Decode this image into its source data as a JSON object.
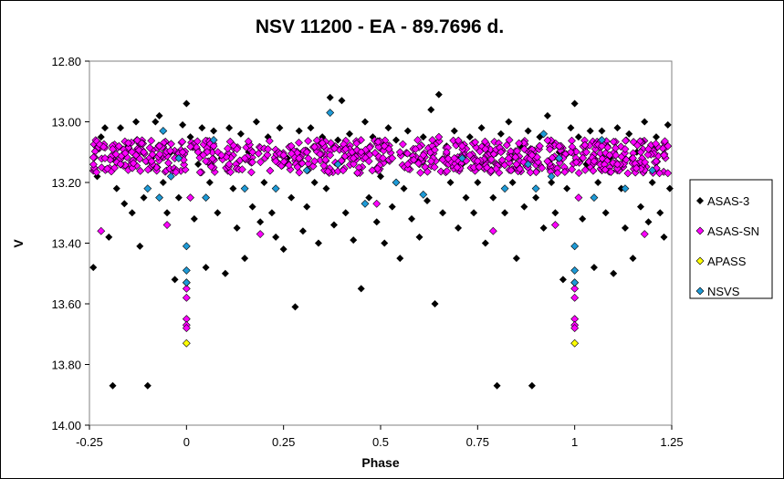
{
  "chart_data": {
    "type": "scatter",
    "title": "NSV 11200 - EA - 89.7696 d.",
    "xlabel": "Phase",
    "ylabel": "V",
    "xlim": [
      -0.25,
      1.25
    ],
    "ylim": [
      12.8,
      14.0
    ],
    "y_inverted": true,
    "x_ticks": [
      "-0.25",
      "0",
      "0.25",
      "0.5",
      "0.75",
      "1",
      "1.25"
    ],
    "y_ticks": [
      "12.80",
      "13.00",
      "13.20",
      "13.40",
      "13.60",
      "13.80",
      "14.00"
    ],
    "grid": false,
    "legend_position": "right",
    "series": [
      {
        "name": "ASAS-3",
        "color": "#000000",
        "points": [
          [
            -0.24,
            13.48
          ],
          [
            -0.23,
            13.18
          ],
          [
            -0.22,
            13.05
          ],
          [
            -0.21,
            13.02
          ],
          [
            -0.2,
            13.38
          ],
          [
            -0.19,
            13.87
          ],
          [
            -0.18,
            13.22
          ],
          [
            -0.17,
            13.02
          ],
          [
            -0.16,
            13.27
          ],
          [
            -0.15,
            13.08
          ],
          [
            -0.14,
            13.3
          ],
          [
            -0.13,
            13.0
          ],
          [
            -0.12,
            13.41
          ],
          [
            -0.11,
            13.25
          ],
          [
            -0.1,
            13.87
          ],
          [
            -0.09,
            13.12
          ],
          [
            -0.08,
            13.0
          ],
          [
            -0.07,
            12.98
          ],
          [
            -0.06,
            13.2
          ],
          [
            -0.05,
            13.3
          ],
          [
            -0.04,
            13.1
          ],
          [
            -0.03,
            13.52
          ],
          [
            -0.02,
            13.25
          ],
          [
            -0.01,
            13.01
          ],
          [
            0.0,
            12.94
          ],
          [
            0.01,
            13.05
          ],
          [
            0.02,
            13.32
          ],
          [
            0.03,
            13.14
          ],
          [
            0.04,
            13.02
          ],
          [
            0.05,
            13.48
          ],
          [
            0.06,
            13.2
          ],
          [
            0.07,
            13.03
          ],
          [
            0.08,
            13.3
          ],
          [
            0.09,
            13.12
          ],
          [
            0.1,
            13.5
          ],
          [
            0.11,
            13.02
          ],
          [
            0.12,
            13.22
          ],
          [
            0.13,
            13.35
          ],
          [
            0.14,
            13.04
          ],
          [
            0.15,
            13.45
          ],
          [
            0.16,
            13.1
          ],
          [
            0.17,
            13.28
          ],
          [
            0.18,
            13.0
          ],
          [
            0.19,
            13.33
          ],
          [
            0.2,
            13.2
          ],
          [
            0.21,
            13.05
          ],
          [
            0.22,
            13.3
          ],
          [
            0.23,
            13.38
          ],
          [
            0.24,
            13.02
          ],
          [
            0.25,
            13.42
          ],
          [
            0.26,
            13.12
          ],
          [
            0.27,
            13.25
          ],
          [
            0.28,
            13.61
          ],
          [
            0.29,
            13.03
          ],
          [
            0.3,
            13.36
          ],
          [
            0.31,
            13.28
          ],
          [
            0.32,
            13.02
          ],
          [
            0.33,
            13.2
          ],
          [
            0.34,
            13.4
          ],
          [
            0.35,
            13.05
          ],
          [
            0.36,
            13.22
          ],
          [
            0.37,
            12.92
          ],
          [
            0.38,
            13.34
          ],
          [
            0.39,
            13.06
          ],
          [
            0.4,
            12.93
          ],
          [
            0.41,
            13.3
          ],
          [
            0.42,
            13.04
          ],
          [
            0.43,
            13.39
          ],
          [
            0.44,
            13.17
          ],
          [
            0.45,
            13.55
          ],
          [
            0.46,
            13.0
          ],
          [
            0.47,
            13.25
          ],
          [
            0.48,
            13.05
          ],
          [
            0.49,
            13.33
          ],
          [
            0.5,
            13.18
          ],
          [
            0.51,
            13.4
          ],
          [
            0.52,
            13.02
          ],
          [
            0.53,
            13.28
          ],
          [
            0.54,
            13.06
          ],
          [
            0.55,
            13.45
          ],
          [
            0.56,
            13.22
          ],
          [
            0.57,
            13.03
          ],
          [
            0.58,
            13.32
          ],
          [
            0.59,
            13.12
          ],
          [
            0.6,
            13.38
          ],
          [
            0.61,
            13.05
          ],
          [
            0.62,
            13.26
          ],
          [
            0.63,
            12.96
          ],
          [
            0.64,
            13.6
          ],
          [
            0.65,
            12.91
          ],
          [
            0.66,
            13.3
          ],
          [
            0.67,
            13.08
          ],
          [
            0.68,
            13.2
          ],
          [
            0.69,
            13.03
          ],
          [
            0.7,
            13.35
          ],
          [
            0.71,
            13.14
          ],
          [
            0.72,
            13.25
          ],
          [
            0.73,
            13.05
          ],
          [
            0.74,
            13.3
          ],
          [
            0.75,
            13.2
          ],
          [
            0.76,
            13.02
          ],
          [
            0.77,
            13.4
          ],
          [
            0.78,
            13.1
          ],
          [
            0.79,
            13.25
          ],
          [
            0.8,
            13.87
          ],
          [
            0.81,
            13.04
          ],
          [
            0.82,
            13.3
          ],
          [
            0.83,
            13.0
          ],
          [
            0.84,
            13.2
          ],
          [
            0.85,
            13.45
          ],
          [
            0.86,
            13.08
          ],
          [
            0.87,
            13.28
          ],
          [
            0.88,
            13.03
          ],
          [
            0.89,
            13.87
          ],
          [
            0.9,
            13.25
          ],
          [
            0.91,
            13.05
          ],
          [
            0.92,
            13.35
          ],
          [
            0.93,
            12.98
          ],
          [
            0.94,
            13.2
          ],
          [
            0.95,
            13.3
          ],
          [
            0.96,
            13.1
          ],
          [
            0.97,
            13.52
          ],
          [
            0.98,
            13.22
          ],
          [
            0.99,
            13.02
          ],
          [
            1.0,
            12.94
          ],
          [
            1.01,
            13.05
          ],
          [
            1.02,
            13.32
          ],
          [
            1.03,
            13.14
          ],
          [
            1.04,
            13.03
          ],
          [
            1.05,
            13.48
          ],
          [
            1.06,
            13.2
          ],
          [
            1.07,
            13.03
          ],
          [
            1.08,
            13.3
          ],
          [
            1.09,
            13.12
          ],
          [
            1.1,
            13.5
          ],
          [
            1.11,
            13.02
          ],
          [
            1.12,
            13.22
          ],
          [
            1.13,
            13.35
          ],
          [
            1.14,
            13.04
          ],
          [
            1.15,
            13.45
          ],
          [
            1.16,
            13.1
          ],
          [
            1.17,
            13.28
          ],
          [
            1.18,
            13.0
          ],
          [
            1.19,
            13.33
          ],
          [
            1.2,
            13.2
          ],
          [
            1.21,
            13.05
          ],
          [
            1.22,
            13.3
          ],
          [
            1.23,
            13.38
          ],
          [
            1.24,
            13.01
          ],
          [
            1.245,
            13.22
          ]
        ]
      },
      {
        "name": "ASAS-SN",
        "color": "#ff00ff",
        "points": [
          [
            -0.22,
            13.36
          ],
          [
            -0.21,
            13.12
          ],
          [
            -0.19,
            13.09
          ],
          [
            -0.17,
            13.14
          ],
          [
            -0.15,
            13.07
          ],
          [
            -0.13,
            13.11
          ],
          [
            -0.11,
            13.1
          ],
          [
            -0.09,
            13.13
          ],
          [
            -0.07,
            13.08
          ],
          [
            -0.05,
            13.34
          ],
          [
            -0.03,
            13.12
          ],
          [
            -0.01,
            13.1
          ],
          [
            0.0,
            13.53
          ],
          [
            0.0,
            13.55
          ],
          [
            0.0,
            13.58
          ],
          [
            0.0,
            13.65
          ],
          [
            0.0,
            13.67
          ],
          [
            0.0,
            13.68
          ],
          [
            0.01,
            13.25
          ],
          [
            0.03,
            13.1
          ],
          [
            0.05,
            13.13
          ],
          [
            0.07,
            13.08
          ],
          [
            0.09,
            13.11
          ],
          [
            0.11,
            13.14
          ],
          [
            0.13,
            13.09
          ],
          [
            0.15,
            13.12
          ],
          [
            0.17,
            13.1
          ],
          [
            0.19,
            13.37
          ],
          [
            0.21,
            13.09
          ],
          [
            0.23,
            13.13
          ],
          [
            0.25,
            13.11
          ],
          [
            0.27,
            13.08
          ],
          [
            0.29,
            13.12
          ],
          [
            0.31,
            13.1
          ],
          [
            0.33,
            13.13
          ],
          [
            0.35,
            13.07
          ],
          [
            0.37,
            13.11
          ],
          [
            0.39,
            13.14
          ],
          [
            0.41,
            13.09
          ],
          [
            0.43,
            13.12
          ],
          [
            0.45,
            13.1
          ],
          [
            0.47,
            13.13
          ],
          [
            0.49,
            13.27
          ],
          [
            0.51,
            13.08
          ],
          [
            0.53,
            13.12
          ],
          [
            0.55,
            13.1
          ],
          [
            0.57,
            13.14
          ],
          [
            0.59,
            13.09
          ],
          [
            0.61,
            13.11
          ],
          [
            0.63,
            13.13
          ],
          [
            0.65,
            13.05
          ],
          [
            0.67,
            13.1
          ],
          [
            0.69,
            13.12
          ],
          [
            0.71,
            13.08
          ],
          [
            0.73,
            13.11
          ],
          [
            0.75,
            13.13
          ],
          [
            0.77,
            13.09
          ],
          [
            0.79,
            13.36
          ],
          [
            0.81,
            13.1
          ],
          [
            0.83,
            13.12
          ],
          [
            0.85,
            13.14
          ],
          [
            0.87,
            13.09
          ],
          [
            0.89,
            13.11
          ],
          [
            0.91,
            13.08
          ],
          [
            0.93,
            13.13
          ],
          [
            0.95,
            13.34
          ],
          [
            0.97,
            13.12
          ],
          [
            0.99,
            13.1
          ],
          [
            1.0,
            13.53
          ],
          [
            1.0,
            13.55
          ],
          [
            1.0,
            13.58
          ],
          [
            1.0,
            13.65
          ],
          [
            1.0,
            13.67
          ],
          [
            1.0,
            13.68
          ],
          [
            1.01,
            13.25
          ],
          [
            1.03,
            13.1
          ],
          [
            1.05,
            13.13
          ],
          [
            1.07,
            13.08
          ],
          [
            1.09,
            13.11
          ],
          [
            1.11,
            13.14
          ],
          [
            1.13,
            13.09
          ],
          [
            1.15,
            13.12
          ],
          [
            1.17,
            13.1
          ],
          [
            1.18,
            13.37
          ],
          [
            1.19,
            13.09
          ],
          [
            1.21,
            13.13
          ],
          [
            1.23,
            13.11
          ],
          [
            1.24,
            13.08
          ]
        ]
      },
      {
        "name": "APASS",
        "color": "#ffff00",
        "points": [
          [
            0.0,
            13.73
          ],
          [
            1.0,
            13.73
          ]
        ]
      },
      {
        "name": "NSVS",
        "color": "#1e9ad6",
        "points": [
          [
            -0.1,
            13.22
          ],
          [
            -0.07,
            13.25
          ],
          [
            -0.06,
            13.03
          ],
          [
            -0.04,
            13.18
          ],
          [
            -0.02,
            13.12
          ],
          [
            0.0,
            13.41
          ],
          [
            0.0,
            13.49
          ],
          [
            0.0,
            13.53
          ],
          [
            0.05,
            13.25
          ],
          [
            0.07,
            13.06
          ],
          [
            0.15,
            13.22
          ],
          [
            0.23,
            13.22
          ],
          [
            0.31,
            13.16
          ],
          [
            0.37,
            12.97
          ],
          [
            0.39,
            13.14
          ],
          [
            0.46,
            13.27
          ],
          [
            0.54,
            13.2
          ],
          [
            0.61,
            13.24
          ],
          [
            0.71,
            13.12
          ],
          [
            0.82,
            13.22
          ],
          [
            0.88,
            13.14
          ],
          [
            0.9,
            13.22
          ],
          [
            0.92,
            13.04
          ],
          [
            0.94,
            13.18
          ],
          [
            0.96,
            13.12
          ],
          [
            1.0,
            13.41
          ],
          [
            1.0,
            13.49
          ],
          [
            1.0,
            13.53
          ],
          [
            1.05,
            13.25
          ],
          [
            1.07,
            13.06
          ],
          [
            1.13,
            13.22
          ],
          [
            1.2,
            13.16
          ]
        ]
      }
    ]
  }
}
